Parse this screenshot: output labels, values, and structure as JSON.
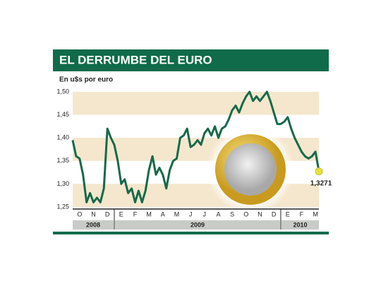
{
  "chart_data": {
    "type": "line",
    "title": "EL DERRUMBE DEL EURO",
    "subtitle": "En u$s por euro",
    "categories": [
      null,
      null,
      "O",
      null,
      null,
      null,
      "N",
      null,
      null,
      null,
      "D",
      null,
      null,
      null,
      "E",
      null,
      null,
      null,
      "F",
      null,
      null,
      null,
      "M",
      null,
      null,
      null,
      "A",
      null,
      null,
      null,
      "M",
      null,
      null,
      null,
      "J",
      null,
      null,
      null,
      "J",
      null,
      null,
      null,
      "A",
      null,
      null,
      null,
      "S",
      null,
      null,
      null,
      "O",
      null,
      null,
      null,
      "N",
      null,
      null,
      null,
      "D",
      null,
      null,
      null,
      "E",
      null,
      null,
      null,
      "F",
      null,
      null,
      null,
      "M",
      null
    ],
    "years": [
      "2008",
      "2009",
      "2010"
    ],
    "series": [
      {
        "color": "#17694a",
        "values": [
          1.395,
          1.36,
          1.355,
          1.32,
          1.26,
          1.28,
          1.26,
          1.27,
          1.26,
          1.29,
          1.42,
          1.4,
          1.385,
          1.35,
          1.3,
          1.31,
          1.28,
          1.29,
          1.26,
          1.285,
          1.26,
          1.285,
          1.33,
          1.36,
          1.32,
          1.335,
          1.32,
          1.29,
          1.33,
          1.35,
          1.355,
          1.4,
          1.405,
          1.42,
          1.38,
          1.385,
          1.395,
          1.385,
          1.41,
          1.42,
          1.405,
          1.425,
          1.4,
          1.42,
          1.425,
          1.44,
          1.46,
          1.47,
          1.455,
          1.475,
          1.49,
          1.5,
          1.48,
          1.49,
          1.48,
          1.49,
          1.5,
          1.48,
          1.455,
          1.43,
          1.43,
          1.435,
          1.445,
          1.42,
          1.4,
          1.385,
          1.37,
          1.36,
          1.355,
          1.36,
          1.37,
          1.3271
        ],
        "value_labels": [
          null,
          null,
          null,
          null,
          null,
          null,
          null,
          null,
          null,
          null,
          null,
          null,
          null,
          null,
          null,
          null,
          null,
          null,
          null,
          null,
          null,
          null,
          null,
          null,
          null,
          null,
          null,
          null,
          null,
          null,
          null,
          null,
          null,
          null,
          null,
          null,
          null,
          null,
          null,
          null,
          null,
          null,
          null,
          null,
          null,
          null,
          null,
          null,
          null,
          null,
          null,
          null,
          null,
          null,
          null,
          null,
          null,
          null,
          null,
          null,
          null,
          null,
          null,
          null,
          null,
          null,
          null,
          null,
          null,
          null,
          null,
          "1,3271"
        ]
      }
    ],
    "ylim": [
      1.25,
      1.5
    ],
    "yticks": [
      {
        "value": 1.25,
        "label": "1,25"
      },
      {
        "value": 1.3,
        "label": "1,30"
      },
      {
        "value": 1.35,
        "label": "1,35"
      },
      {
        "value": 1.4,
        "label": "1,40"
      },
      {
        "value": 1.45,
        "label": "1,45"
      },
      {
        "value": 1.5,
        "label": "1,50"
      }
    ],
    "band_color": "#f4e7cd"
  }
}
